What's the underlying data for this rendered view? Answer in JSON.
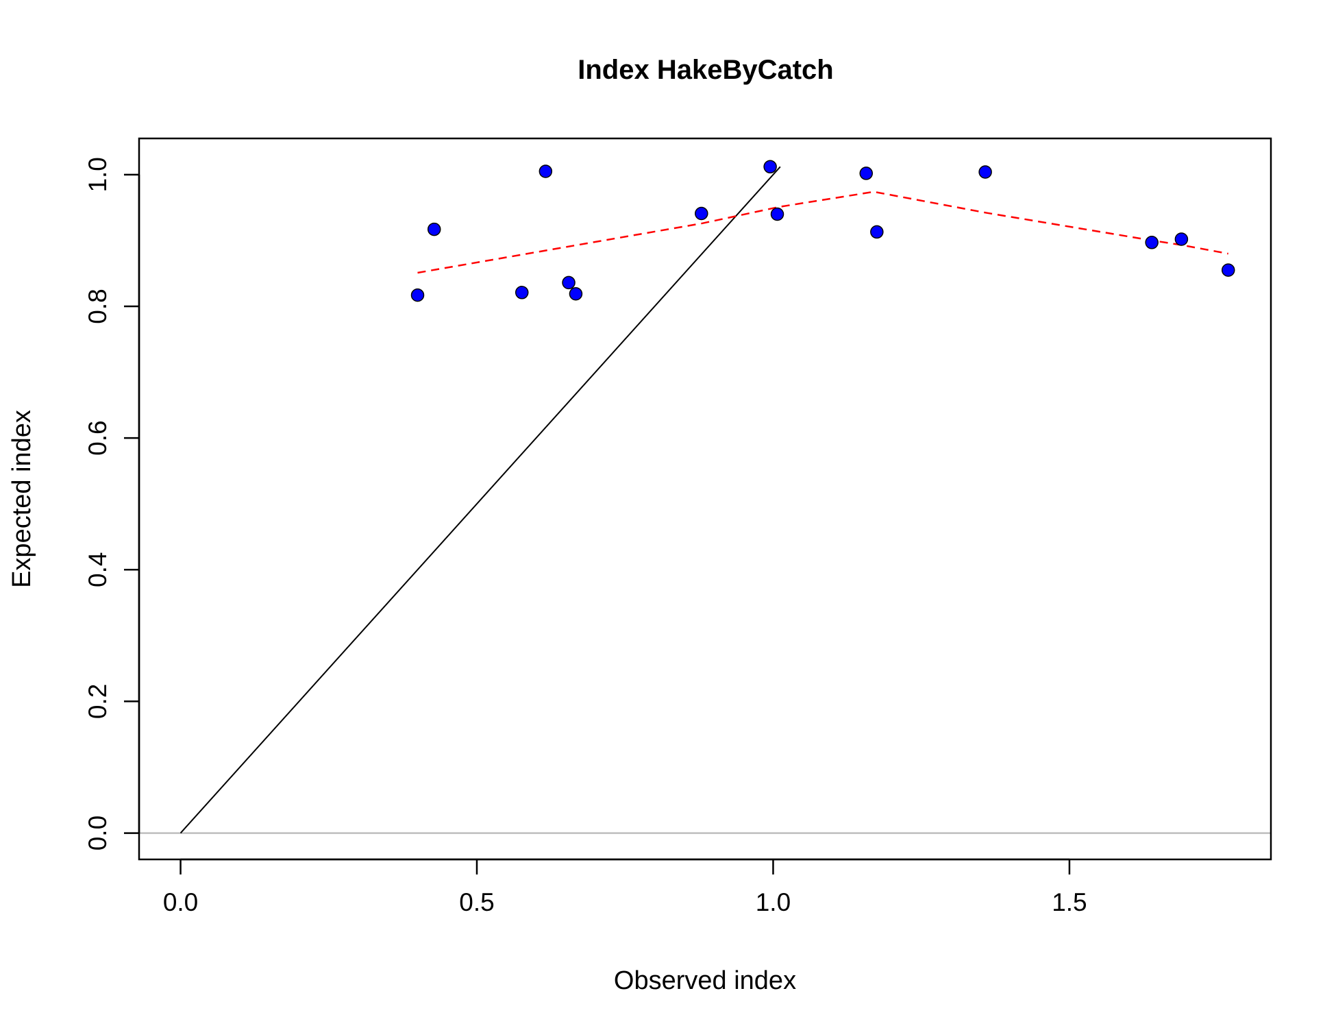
{
  "chart_data": {
    "type": "scatter",
    "title": "Index HakeByCatch",
    "xlabel": "Observed index",
    "ylabel": "Expected index",
    "xlim": [
      -0.07,
      1.84
    ],
    "ylim": [
      -0.04,
      1.055
    ],
    "xticks": [
      0.0,
      0.5,
      1.0,
      1.5
    ],
    "xtick_labels": [
      "0.0",
      "0.5",
      "1.0",
      "1.5"
    ],
    "yticks": [
      0.0,
      0.2,
      0.4,
      0.6,
      0.8,
      1.0
    ],
    "ytick_labels": [
      "0.0",
      "0.2",
      "0.4",
      "0.6",
      "0.8",
      "1.0"
    ],
    "grid": false,
    "points": {
      "color": "#0000ff",
      "x": [
        0.4,
        0.428,
        0.576,
        0.616,
        0.655,
        0.667,
        0.879,
        0.995,
        1.007,
        1.157,
        1.175,
        1.358,
        1.639,
        1.689,
        1.768
      ],
      "y": [
        0.817,
        0.917,
        0.821,
        1.005,
        0.836,
        0.819,
        0.941,
        1.012,
        0.94,
        1.002,
        0.913,
        1.004,
        0.897,
        0.902,
        0.855
      ]
    },
    "identity_line": {
      "color": "#000000",
      "x": [
        0.0,
        1.012
      ],
      "y": [
        0.0,
        1.012
      ]
    },
    "smooth_line": {
      "color": "#ff0000",
      "style": "dashed",
      "x": [
        0.4,
        0.88,
        1.01,
        1.17,
        1.36,
        1.64,
        1.69,
        1.768
      ],
      "y": [
        0.851,
        0.926,
        0.951,
        0.974,
        0.942,
        0.9,
        0.893,
        0.88
      ]
    },
    "zero_line": {
      "color": "#bebebe",
      "y": 0.0
    }
  }
}
